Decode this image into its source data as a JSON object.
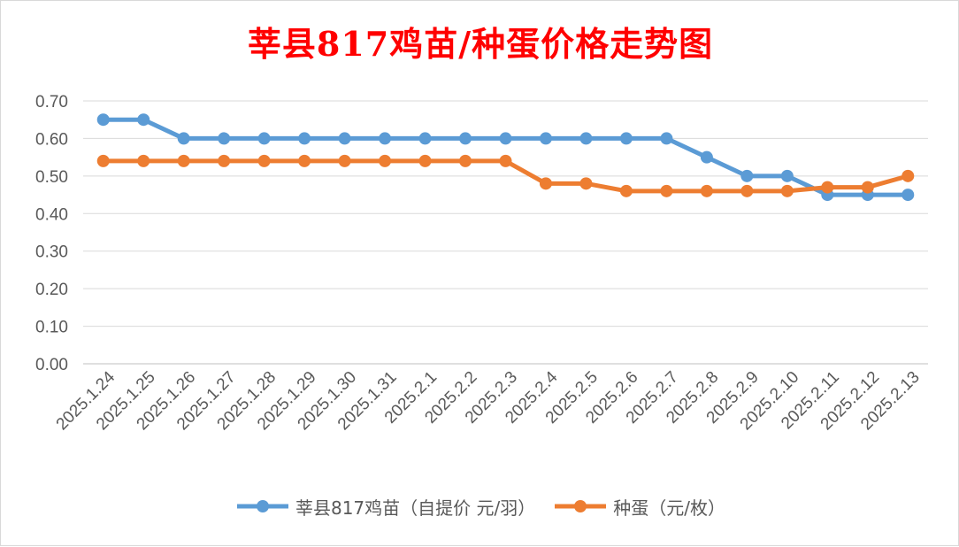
{
  "chart_data": {
    "type": "line",
    "title": "莘县817鸡苗/种蛋价格走势图",
    "categories": [
      "2025.1.24",
      "2025.1.25",
      "2025.1.26",
      "2025.1.27",
      "2025.1.28",
      "2025.1.29",
      "2025.1.30",
      "2025.1.31",
      "2025.2.1",
      "2025.2.2",
      "2025.2.3",
      "2025.2.4",
      "2025.2.5",
      "2025.2.6",
      "2025.2.7",
      "2025.2.8",
      "2025.2.9",
      "2025.2.10",
      "2025.2.11",
      "2025.2.12",
      "2025.2.13"
    ],
    "series": [
      {
        "name": "莘县817鸡苗（自提价 元/羽）",
        "color": "#5b9bd5",
        "values": [
          0.65,
          0.65,
          0.6,
          0.6,
          0.6,
          0.6,
          0.6,
          0.6,
          0.6,
          0.6,
          0.6,
          0.6,
          0.6,
          0.6,
          0.6,
          0.55,
          0.5,
          0.5,
          0.45,
          0.45,
          0.45
        ]
      },
      {
        "name": "种蛋（元/枚）",
        "color": "#ed7d31",
        "values": [
          0.54,
          0.54,
          0.54,
          0.54,
          0.54,
          0.54,
          0.54,
          0.54,
          0.54,
          0.54,
          0.54,
          0.48,
          0.48,
          0.46,
          0.46,
          0.46,
          0.46,
          0.46,
          0.47,
          0.47,
          0.5
        ]
      }
    ],
    "yticks": [
      "0.00",
      "0.10",
      "0.20",
      "0.30",
      "0.40",
      "0.50",
      "0.60",
      "0.70"
    ],
    "ylim": [
      0,
      0.7
    ],
    "grid": true,
    "legend": "bottom"
  }
}
